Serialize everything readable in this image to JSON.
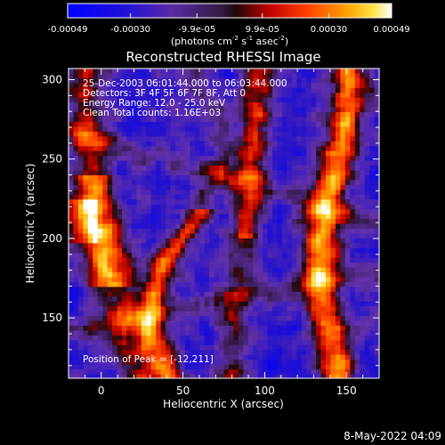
{
  "chart_data": {
    "type": "heatmap",
    "title": "Reconstructed RHESSI Image",
    "xlabel": "Heliocentric X (arcsec)",
    "ylabel": "Heliocentric Y (arcsec)",
    "xlim": [
      -20,
      170
    ],
    "ylim": [
      112,
      307
    ],
    "x_ticks": [
      0,
      50,
      100,
      150
    ],
    "y_ticks": [
      150,
      200,
      250,
      300
    ],
    "colorbar": {
      "ticks": [
        {
          "value": -0.00049,
          "label": "-0.00049"
        },
        {
          "value": -0.0003,
          "label": "-0.00030"
        },
        {
          "value": -9.9e-05,
          "label": "-9.9e-05"
        },
        {
          "value": 9.9e-05,
          "label": "9.9e-05"
        },
        {
          "value": 0.0003,
          "label": "0.00030"
        },
        {
          "value": 0.00049,
          "label": "0.00049"
        }
      ],
      "range": [
        -0.00049,
        0.00049
      ],
      "unit_parts": [
        "(photons cm",
        "-2",
        " s",
        "-1",
        " asec",
        "-2",
        ")"
      ]
    },
    "annotations": {
      "time": "25-Dec-2003 06:01:44.000 to 06:03:44.000",
      "detectors": "Detectors: 3F 4F 5F 6F 7F 8F, Att 0",
      "energy": "Energy Range: 12.0 - 25.0 keV",
      "clean": "Clean    Total counts: 1.16E+03",
      "peak": "Position of Peak = [-12,211]"
    },
    "peak": [
      -12,
      211
    ]
  },
  "footer": {
    "date": "8-May-2022 04:09"
  },
  "colors": {
    "background": "#000000",
    "axes": "#ffffff"
  }
}
